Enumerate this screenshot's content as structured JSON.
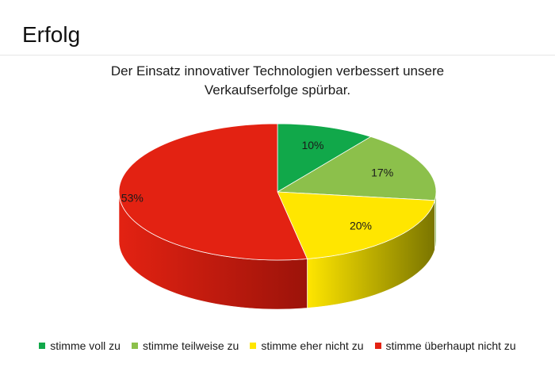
{
  "page": {
    "title": "Erfolg"
  },
  "chart_data": {
    "type": "pie",
    "title_lines": [
      "Der Einsatz innovativer Technologien verbessert unsere",
      "Verkaufserfolge spürbar."
    ],
    "categories": [
      "stimme voll zu",
      "stimme teilweise zu",
      "stimme eher nicht zu",
      "stimme überhaupt nicht zu"
    ],
    "values": [
      10,
      17,
      20,
      53
    ],
    "labels": [
      "10%",
      "17%",
      "20%",
      "53%"
    ],
    "colors": [
      "#11a84a",
      "#8cc04b",
      "#ffe600",
      "#e32212"
    ],
    "side_colors": [
      "#0b7a35",
      "#5f8c2c",
      "#7a7500",
      "#9c130a"
    ],
    "legend_position": "bottom",
    "style": "3d"
  }
}
